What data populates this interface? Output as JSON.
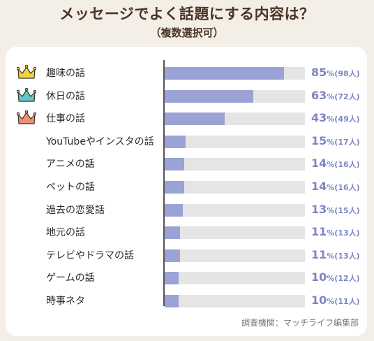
{
  "header": {
    "title": "メッセージでよく話題にする内容は？",
    "subtitle": "（複数選択可）"
  },
  "source": "調査機関：マッチライフ編集部",
  "colors": {
    "background": "#f3eee6",
    "bar": "#9aa2d6",
    "track": "#e5e5e5",
    "value_text": "#7d86c4",
    "crown_gold": "#f2d43a",
    "crown_teal": "#5cc6c9",
    "crown_coral": "#ef8f76"
  },
  "chart_data": {
    "type": "bar",
    "orientation": "horizontal",
    "title": "メッセージでよく話題にする内容は？",
    "subtitle": "（複数選択可）",
    "categories": [
      "趣味の話",
      "休日の話",
      "仕事の話",
      "YouTubeやインスタの話",
      "アニメの話",
      "ペットの話",
      "過去の恋愛話",
      "地元の話",
      "テレビやドラマの話",
      "ゲームの話",
      "時事ネタ"
    ],
    "values": [
      85,
      63,
      43,
      15,
      14,
      14,
      13,
      11,
      11,
      10,
      10
    ],
    "value_labels": [
      "85",
      "63",
      "43",
      "15",
      "14",
      "14",
      "13",
      "11",
      "11",
      "10",
      "10"
    ],
    "count_labels": [
      "(98人)",
      "(72人)",
      "(49人)",
      "(17人)",
      "(16人)",
      "(16人)",
      "(15人)",
      "(13人)",
      "(13人)",
      "(12人)",
      "(11人)"
    ],
    "unit": "%",
    "xlim": [
      0,
      100
    ],
    "grid": false,
    "rank_icons": [
      "crown-gold-icon",
      "crown-teal-icon",
      "crown-coral-icon"
    ]
  }
}
